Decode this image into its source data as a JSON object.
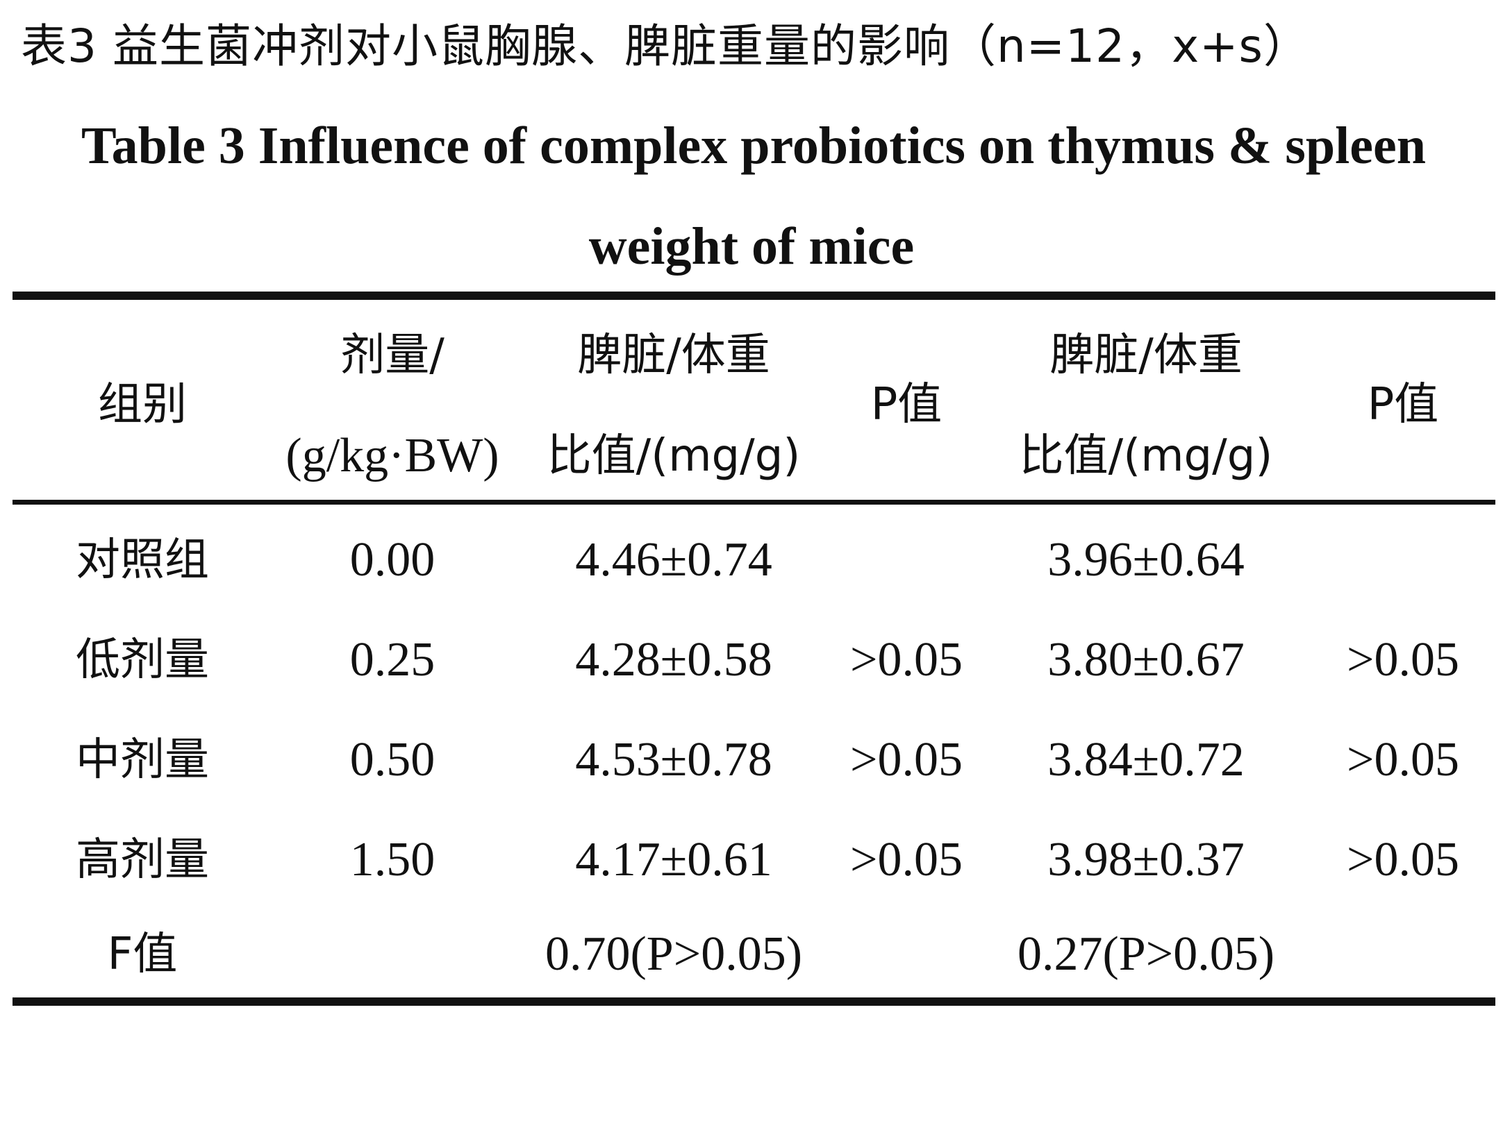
{
  "caption": {
    "chinese": "表3  益生菌冲剂对小鼠胸腺、脾脏重量的影响（n=12，x+s）",
    "english_line1": "Table 3 Influence of complex probiotics on thymus & spleen",
    "english_line2": "weight of mice"
  },
  "table": {
    "header": {
      "group": "组别",
      "dose_line1": "剂量/",
      "dose_line2": "(g/kg·BW)",
      "ratio1_line1": "脾脏/体重",
      "ratio1_line2": "比值/(mg/g)",
      "p1": "P值",
      "ratio2_line1": "脾脏/体重",
      "ratio2_line2": "比值/(mg/g)",
      "p2": "P值"
    },
    "rows": [
      {
        "group": "对照组",
        "dose": "0.00",
        "ratio1": "4.46±0.74",
        "p1": "",
        "ratio2": "3.96±0.64",
        "p2": ""
      },
      {
        "group": "低剂量",
        "dose": "0.25",
        "ratio1": "4.28±0.58",
        "p1": ">0.05",
        "ratio2": "3.80±0.67",
        "p2": ">0.05"
      },
      {
        "group": "中剂量",
        "dose": "0.50",
        "ratio1": "4.53±0.78",
        "p1": ">0.05",
        "ratio2": "3.84±0.72",
        "p2": ">0.05"
      },
      {
        "group": "高剂量",
        "dose": "1.50",
        "ratio1": "4.17±0.61",
        "p1": ">0.05",
        "ratio2": "3.98±0.37",
        "p2": ">0.05"
      }
    ],
    "f_row": {
      "label": "F值",
      "ratio1": "0.70(P>0.05)",
      "ratio2": "0.27(P>0.05)"
    }
  }
}
